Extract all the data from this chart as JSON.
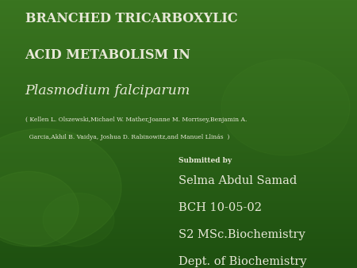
{
  "bg_color_top": "#3a7520",
  "bg_color_bottom": "#1e5010",
  "title_line1": "BRANCHED TRICARBOXYLIC",
  "title_line2": "ACID METABOLISM IN",
  "title_italic": "Plasmodium falciparum",
  "authors_line1": "( Kellen L. Olszewski,Michael W. Mather,Joanne M. Morrisey,Benjamin A.",
  "authors_line2": "  Garcia,Akhil B. Vaidya, Joshua D. Rabinowitz,and Manuel Llinás  )",
  "submitted_by_label": "Submitted by",
  "name": "Selma Abdul Samad",
  "code": "BCH 10-05-02",
  "degree": "S2 MSc.Biochemistry",
  "dept": "Dept. of Biochemistry",
  "text_color": "#e8e8d8",
  "title_fontsize": 11.5,
  "italic_fontsize": 12.5,
  "authors_fontsize": 5.5,
  "submitted_fontsize": 6.5,
  "info_fontsize": 10.5
}
